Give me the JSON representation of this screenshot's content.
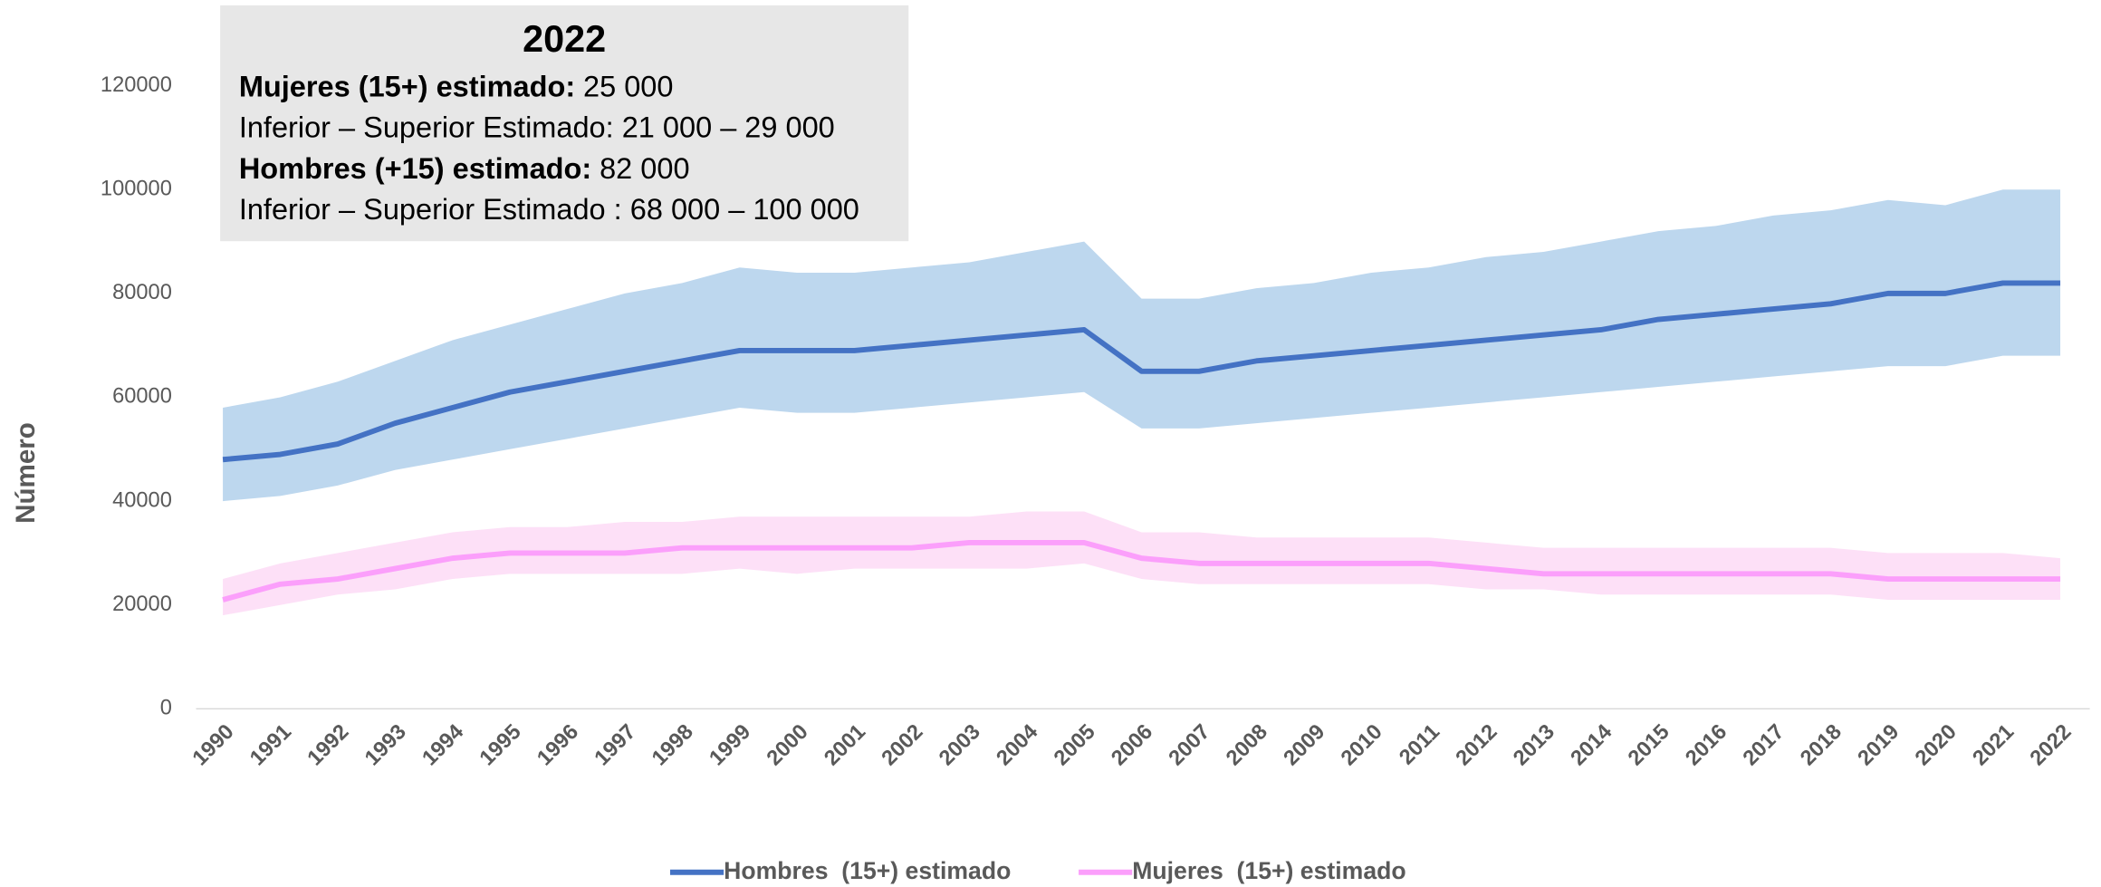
{
  "chart_data": {
    "type": "line",
    "y_label": "Número",
    "categories": [
      "1990",
      "1991",
      "1992",
      "1993",
      "1994",
      "1995",
      "1996",
      "1997",
      "1998",
      "1999",
      "2000",
      "2001",
      "2002",
      "2003",
      "2004",
      "2005",
      "2006",
      "2007",
      "2008",
      "2009",
      "2010",
      "2011",
      "2012",
      "2013",
      "2014",
      "2015",
      "2016",
      "2017",
      "2018",
      "2019",
      "2020",
      "2021",
      "2022"
    ],
    "series": [
      {
        "name": "Hombres  (15+) estimado",
        "color": "#4472c4",
        "band_color": "#bdd7ee",
        "values": [
          48000,
          49000,
          51000,
          55000,
          58000,
          61000,
          63000,
          65000,
          67000,
          69000,
          69000,
          69000,
          70000,
          71000,
          72000,
          73000,
          65000,
          65000,
          67000,
          68000,
          69000,
          70000,
          71000,
          72000,
          73000,
          75000,
          76000,
          77000,
          78000,
          80000,
          80000,
          82000,
          82000
        ],
        "upper": [
          58000,
          60000,
          63000,
          67000,
          71000,
          74000,
          77000,
          80000,
          82000,
          85000,
          84000,
          84000,
          85000,
          86000,
          88000,
          90000,
          79000,
          79000,
          81000,
          82000,
          84000,
          85000,
          87000,
          88000,
          90000,
          92000,
          93000,
          95000,
          96000,
          98000,
          97000,
          100000,
          100000
        ],
        "lower": [
          40000,
          41000,
          43000,
          46000,
          48000,
          50000,
          52000,
          54000,
          56000,
          58000,
          57000,
          57000,
          58000,
          59000,
          60000,
          61000,
          54000,
          54000,
          55000,
          56000,
          57000,
          58000,
          59000,
          60000,
          61000,
          62000,
          63000,
          64000,
          65000,
          66000,
          66000,
          68000,
          68000
        ]
      },
      {
        "name": "Mujeres  (15+) estimado",
        "color": "#fb9ffb",
        "band_color": "#fde0f7",
        "values": [
          21000,
          24000,
          25000,
          27000,
          29000,
          30000,
          30000,
          30000,
          31000,
          31000,
          31000,
          31000,
          31000,
          32000,
          32000,
          32000,
          29000,
          28000,
          28000,
          28000,
          28000,
          28000,
          27000,
          26000,
          26000,
          26000,
          26000,
          26000,
          26000,
          25000,
          25000,
          25000,
          25000
        ],
        "upper": [
          25000,
          28000,
          30000,
          32000,
          34000,
          35000,
          35000,
          36000,
          36000,
          37000,
          37000,
          37000,
          37000,
          37000,
          38000,
          38000,
          34000,
          34000,
          33000,
          33000,
          33000,
          33000,
          32000,
          31000,
          31000,
          31000,
          31000,
          31000,
          31000,
          30000,
          30000,
          30000,
          29000
        ],
        "lower": [
          18000,
          20000,
          22000,
          23000,
          25000,
          26000,
          26000,
          26000,
          26000,
          27000,
          26000,
          27000,
          27000,
          27000,
          27000,
          28000,
          25000,
          24000,
          24000,
          24000,
          24000,
          24000,
          23000,
          23000,
          22000,
          22000,
          22000,
          22000,
          22000,
          21000,
          21000,
          21000,
          21000
        ]
      }
    ],
    "ylim": [
      0,
      120000
    ],
    "yticks": [
      0,
      20000,
      40000,
      60000,
      80000,
      100000,
      120000
    ],
    "grid": false,
    "legend": "bottom",
    "annotation": {
      "title": "2022",
      "lines": [
        {
          "bold": "Mujeres (15+) estimado:",
          "text": "25 000"
        },
        {
          "text": "Inferior – Superior Estimado: 21 000 – 29 000"
        },
        {
          "bold": "Hombres (+15) estimado:",
          "text": "82 000"
        },
        {
          "text": "Inferior – Superior Estimado : 68 000 – 100 000"
        }
      ]
    }
  }
}
